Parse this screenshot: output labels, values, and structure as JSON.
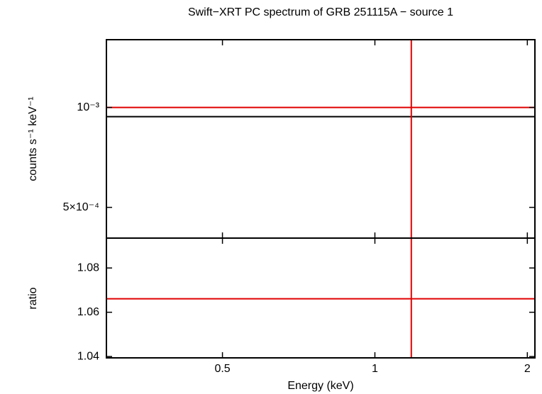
{
  "chart_data": [
    {
      "type": "line",
      "title": "Swift−XRT PC spectrum of GRB 251115A − source 1",
      "ylabel": "counts s⁻¹ keV⁻¹",
      "xlog": true,
      "ylog": true,
      "xlim": [
        0.295,
        2.07
      ],
      "ylim": [
        0.000404,
        0.0016
      ],
      "yticks": [
        {
          "value": 0.001,
          "label": "10⁻³"
        },
        {
          "value": 0.0005,
          "label": "5×10⁻⁴"
        }
      ],
      "hlines": [
        {
          "value": 0.001,
          "color": "#e00000"
        },
        {
          "value": 0.000938,
          "color": "#000000"
        }
      ],
      "vline": {
        "x": 1.18,
        "color": "#e00000"
      }
    },
    {
      "type": "line",
      "xlabel": "Energy (keV)",
      "ylabel": "ratio",
      "xlog": true,
      "xlim": [
        0.295,
        2.07
      ],
      "ylim": [
        1.0394,
        1.0935
      ],
      "xticks": [
        0.5,
        1,
        2
      ],
      "yticks": [
        1.04,
        1.06,
        1.08
      ],
      "hlines": [
        {
          "value": 1.0661,
          "color": "#e00000"
        }
      ],
      "vline": {
        "x": 1.18,
        "color": "#e00000"
      }
    }
  ]
}
